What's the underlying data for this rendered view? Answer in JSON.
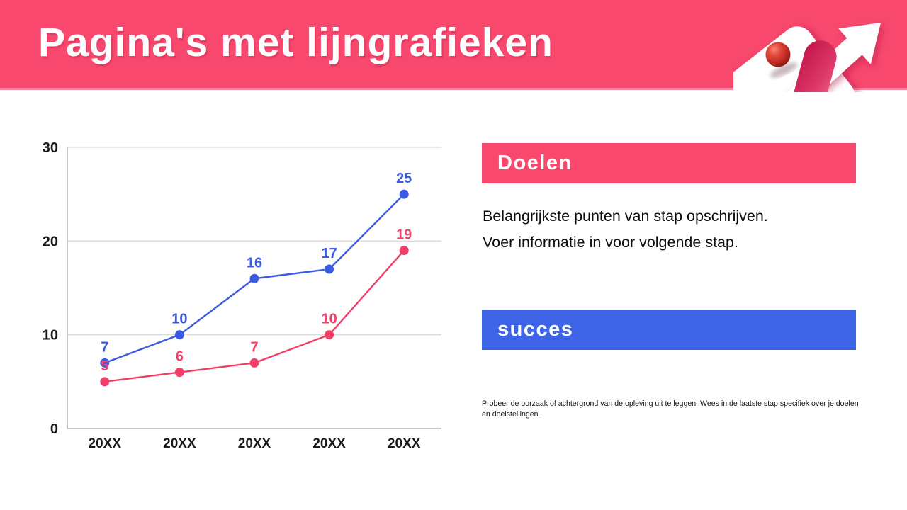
{
  "slide": {
    "title": "Pagina's met lijngrafieken"
  },
  "colors": {
    "accent_pink": "#F8486E",
    "accent_blue": "#3D63E7",
    "grid": "#DBDBDB",
    "axis": "#C6C6C6",
    "tick_text": "#1A1A1A"
  },
  "chart_data": {
    "type": "line",
    "categories": [
      "20XX",
      "20XX",
      "20XX",
      "20XX",
      "20XX"
    ],
    "series": [
      {
        "name": "blue-series",
        "color": "#3A5BE2",
        "values": [
          7,
          10,
          16,
          17,
          25
        ]
      },
      {
        "name": "pink-series",
        "color": "#F23F68",
        "values": [
          5,
          6,
          7,
          10,
          19
        ]
      }
    ],
    "title": "",
    "xlabel": "",
    "ylabel": "",
    "ylim": [
      0,
      30
    ],
    "yticks": [
      0,
      10,
      20,
      30
    ],
    "grid": "horizontal",
    "data_labels": true,
    "legend": "none"
  },
  "right_panel": {
    "goals": {
      "heading": "Doelen",
      "line1": "Belangrijkste punten van stap opschrijven.",
      "line2": "Voer informatie in voor volgende stap."
    },
    "success": {
      "heading": "succes",
      "note": "Probeer de oorzaak of achtergrond van de opleving uit te leggen. Wees in de laatste stap specifiek over je doelen en doelstellingen."
    }
  },
  "decor": {
    "arrow_icon": "3d-arrow-up-right-with-red-sphere"
  }
}
